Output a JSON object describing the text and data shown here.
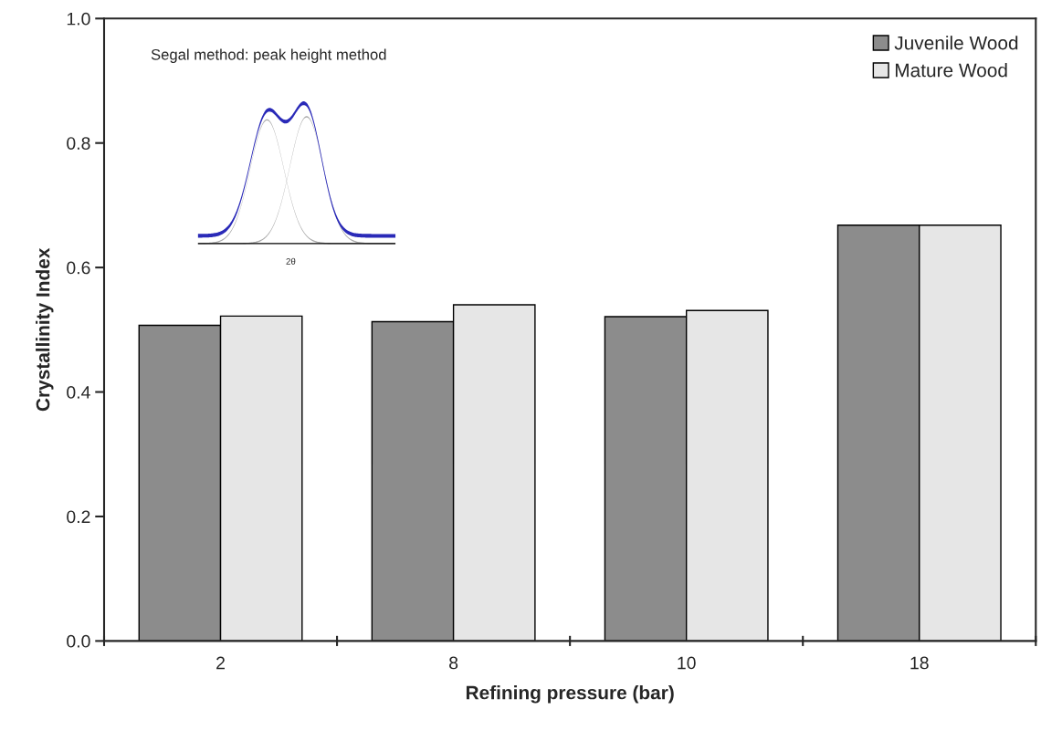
{
  "chart_data": {
    "type": "bar",
    "xlabel": "Refining pressure (bar)",
    "ylabel": "Crystallinity Index",
    "categories": [
      "2",
      "8",
      "10",
      "18"
    ],
    "series": [
      {
        "name": "Juvenile Wood",
        "color": "#8c8c8c",
        "values": [
          0.507,
          0.513,
          0.521,
          0.668
        ]
      },
      {
        "name": "Mature Wood",
        "color": "#e6e6e6",
        "values": [
          0.522,
          0.54,
          0.531,
          0.668
        ]
      }
    ],
    "ylim": [
      0,
      1
    ],
    "yticks": [
      {
        "value": 0,
        "label": "0.0"
      },
      0.2,
      0.4,
      0.6,
      0.8,
      {
        "value": 1,
        "label": "1.0"
      }
    ],
    "annotations": [
      "Segal method: peak height method",
      "2θ"
    ],
    "legend": "top right",
    "grid": false
  }
}
